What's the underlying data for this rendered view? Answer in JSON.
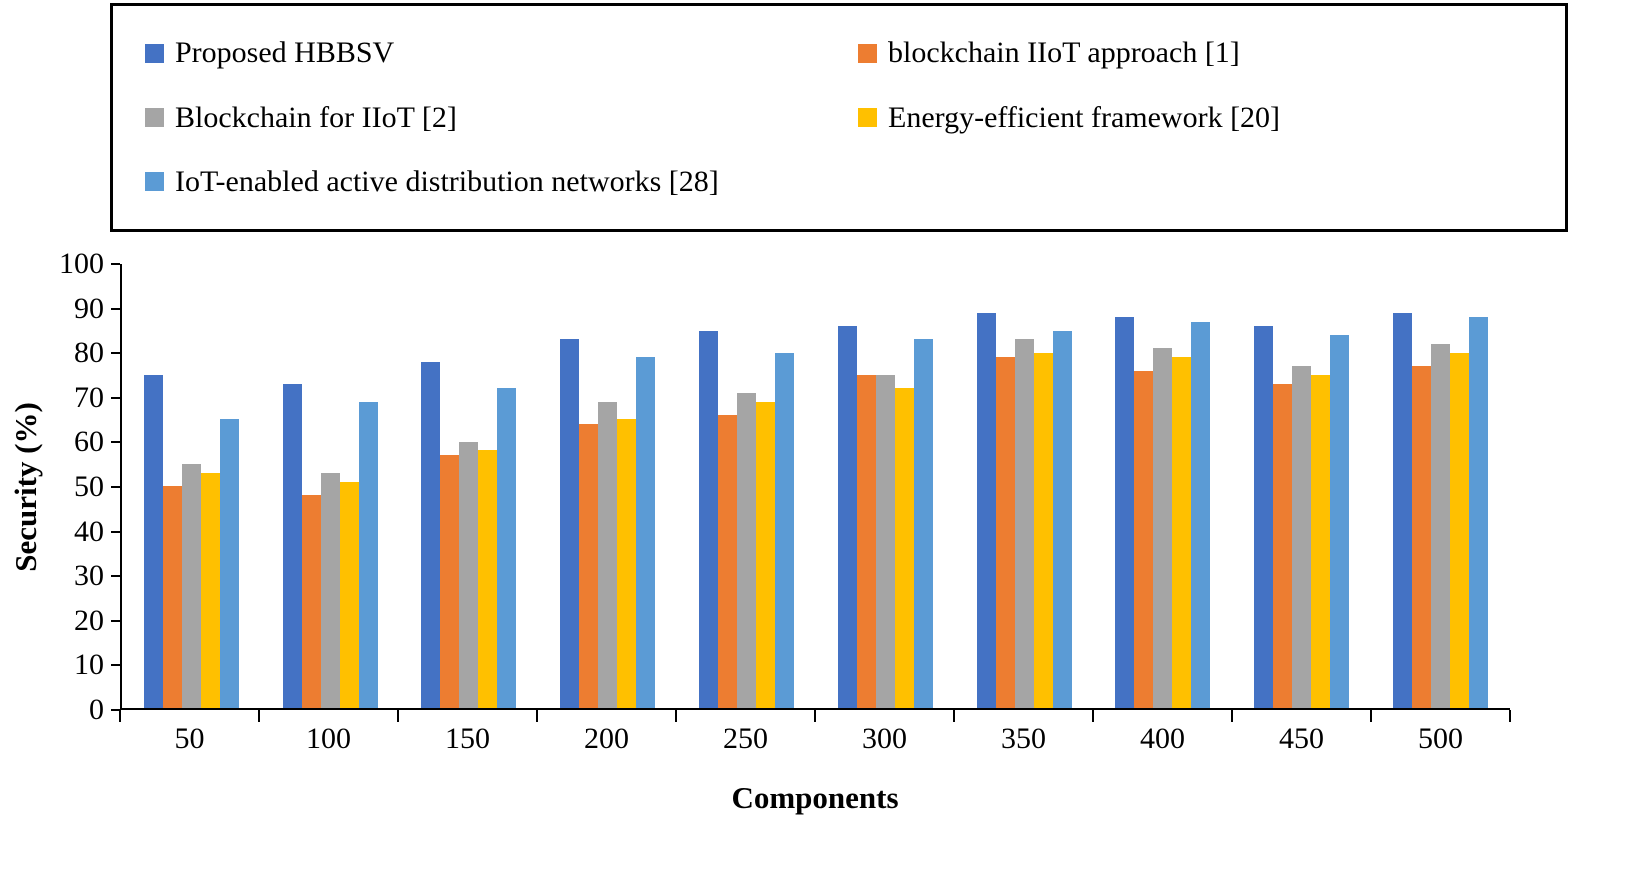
{
  "chart_data": {
    "type": "bar",
    "title": "",
    "xlabel": "Components",
    "ylabel": "Security (%)",
    "ylim": [
      0,
      100
    ],
    "ytick_step": 10,
    "grid": false,
    "legend_position": "top-box",
    "categories": [
      "50",
      "100",
      "150",
      "200",
      "250",
      "300",
      "350",
      "400",
      "450",
      "500"
    ],
    "series": [
      {
        "name": "Proposed HBBSV",
        "color": "#4472C4",
        "values": [
          75,
          73,
          78,
          83,
          85,
          86,
          89,
          88,
          86,
          89
        ]
      },
      {
        "name": "blockchain IIoT approach [1]",
        "color": "#ED7D31",
        "values": [
          50,
          48,
          57,
          64,
          66,
          75,
          79,
          76,
          73,
          77
        ]
      },
      {
        "name": "Blockchain for IIoT [2]",
        "color": "#A5A5A5",
        "values": [
          55,
          53,
          60,
          69,
          71,
          75,
          83,
          81,
          77,
          82
        ]
      },
      {
        "name": "Energy-efficient framework [20]",
        "color": "#FFC000",
        "values": [
          53,
          51,
          58,
          65,
          69,
          72,
          80,
          79,
          75,
          80
        ]
      },
      {
        "name": "IoT-enabled active distribution networks [28]",
        "color": "#5B9BD5",
        "values": [
          65,
          69,
          72,
          79,
          80,
          83,
          85,
          87,
          84,
          88
        ]
      }
    ]
  }
}
